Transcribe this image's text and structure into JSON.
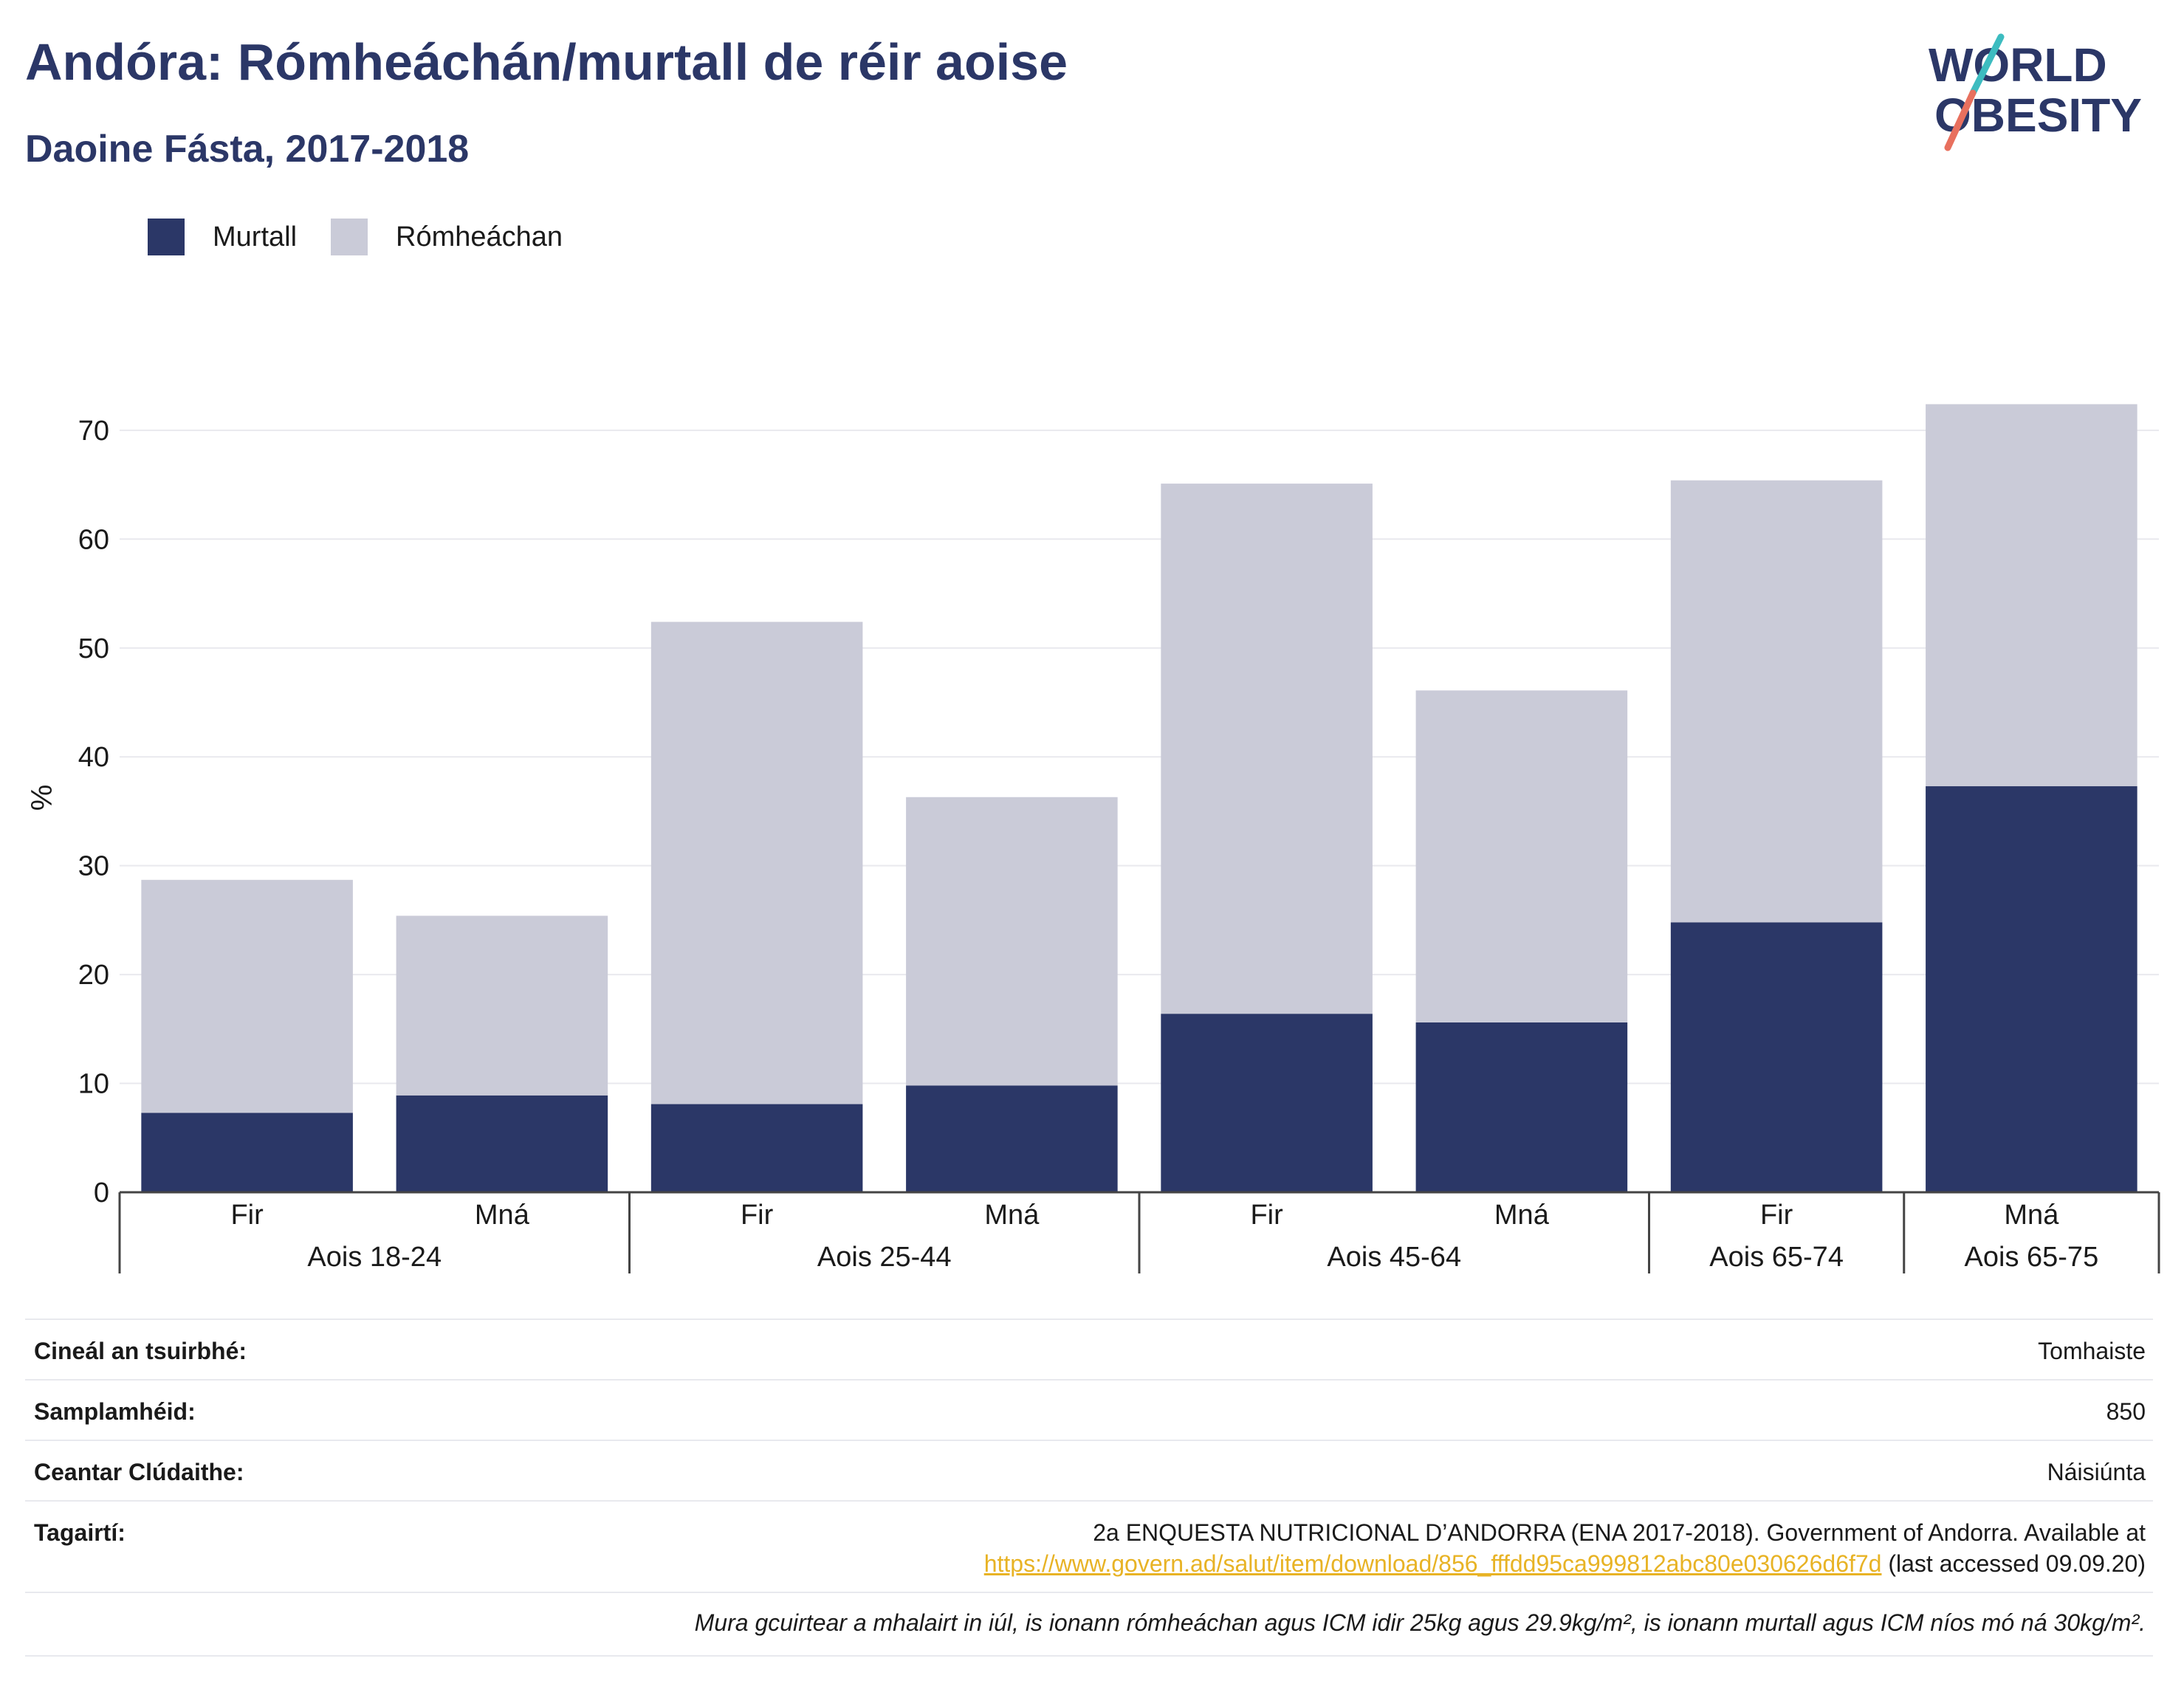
{
  "header": {
    "title": "Andóra: Rómheáchán/murtall de réir aoise",
    "subtitle": "Daoine Fásta, 2017-2018"
  },
  "logo": {
    "line1": "WORLD",
    "line2": "OBESITY"
  },
  "colors": {
    "obesity": "#2b3767",
    "overweight": "#cacbd8",
    "title": "#2b3767",
    "link": "#e8b325",
    "logo_slash_teal": "#3dbcc0",
    "logo_slash_red": "#e8705e"
  },
  "chart_data": {
    "type": "bar",
    "stacked": true,
    "ylabel": "%",
    "ylim": [
      0,
      72.5
    ],
    "yticks": [
      0,
      10,
      20,
      30,
      40,
      50,
      60,
      70
    ],
    "grid": true,
    "legend_position": "top-left",
    "categories": [
      "Fir",
      "Mná",
      "Fir",
      "Mná",
      "Fir",
      "Mná",
      "Fir",
      "Mná"
    ],
    "groups": [
      {
        "label": "Aois 18-24",
        "count": 2
      },
      {
        "label": "Aois 25-44",
        "count": 2
      },
      {
        "label": "Aois 45-64",
        "count": 2
      },
      {
        "label": "Aois 65-74",
        "count": 1
      },
      {
        "label": "Aois 65-75",
        "count": 1
      }
    ],
    "series": [
      {
        "name": "Murtall",
        "values": [
          7.3,
          8.9,
          8.1,
          9.8,
          16.4,
          15.6,
          24.8,
          37.3
        ]
      },
      {
        "name": "Rómheáchan",
        "values": [
          21.4,
          16.5,
          44.3,
          26.5,
          48.7,
          30.5,
          40.6,
          35.1
        ]
      }
    ]
  },
  "info": {
    "rows": [
      {
        "key": "Cineál an tsuirbhé:",
        "value": "Tomhaiste"
      },
      {
        "key": "Samplamhéid:",
        "value": "850"
      },
      {
        "key": "Ceantar Clúdaithe:",
        "value": "Náisiúnta"
      }
    ],
    "references": {
      "key": "Tagairtí:",
      "line1": "2a ENQUESTA NUTRICIONAL D’ANDORRA (ENA 2017-2018). Government of Andorra. Available at",
      "link": "https://www.govern.ad/salut/item/download/856_fffdd95ca999812abc80e030626d6f7d",
      "suffix": " (last accessed 09.09.20)"
    },
    "note": "Mura gcuirtear a mhalairt in iúl, is ionann rómheáchan agus ICM idir 25kg agus 29.9kg/m², is ionann murtall agus ICM níos mó ná 30kg/m²."
  }
}
